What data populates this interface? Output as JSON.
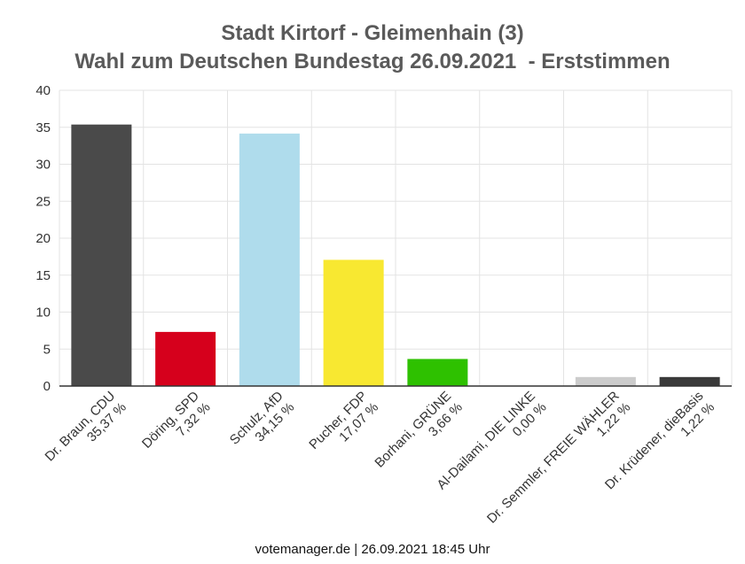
{
  "chart_data": {
    "type": "bar",
    "title_line1": "Stadt Kirtorf - Gleimenhain (3)",
    "title_line2": "Wahl zum Deutschen Bundestag 26.09.2021  - Erststimmen",
    "ylim": [
      0,
      40
    ],
    "yticks": [
      "0",
      "5",
      "10",
      "15",
      "20",
      "25",
      "30",
      "35",
      "40"
    ],
    "grid": true,
    "categories": [
      {
        "name": "Dr. Braun, CDU",
        "label": "35,37 %",
        "value": 35.37,
        "color": "#4a4a4a"
      },
      {
        "name": "Döring, SPD",
        "label": "7,32 %",
        "value": 7.32,
        "color": "#d6001c"
      },
      {
        "name": "Schulz, AfD",
        "label": "34,15 %",
        "value": 34.15,
        "color": "#afdcec"
      },
      {
        "name": "Pucher, FDP",
        "label": "17,07 %",
        "value": 17.07,
        "color": "#f8e831"
      },
      {
        "name": "Borhani, GRÜNE",
        "label": "3,66 %",
        "value": 3.66,
        "color": "#2ec100"
      },
      {
        "name": "Al-Dailami, DIE LINKE",
        "label": "0,00 %",
        "value": 0.0,
        "color": "#be3075"
      },
      {
        "name": "Dr. Semmler, FREIE WÄHLER",
        "label": "1,22 %",
        "value": 1.22,
        "color": "#cccccc"
      },
      {
        "name": "Dr. Krüdener, dieBasis",
        "label": "1,22 %",
        "value": 1.22,
        "color": "#3a3a3a"
      }
    ]
  },
  "footer": "votemanager.de | 26.09.2021 18:45 Uhr"
}
